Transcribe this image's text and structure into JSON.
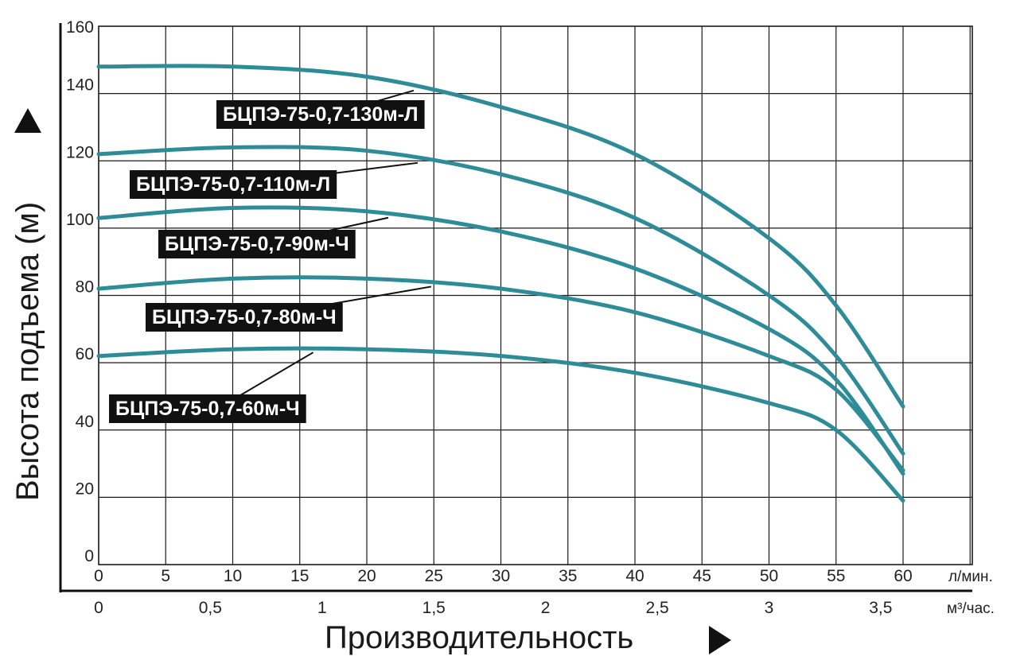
{
  "chart_data": {
    "type": "line",
    "ylabel": "Высота подъема (м)",
    "xlabel": "Производительность",
    "ylim": [
      0,
      160
    ],
    "yticks": [
      "0",
      "20",
      "40",
      "60",
      "80",
      "100",
      "120",
      "140",
      "160"
    ],
    "xlim": [
      0,
      65
    ],
    "x_primary_ticks": [
      "0",
      "5",
      "10",
      "15",
      "20",
      "25",
      "30",
      "35",
      "40",
      "45",
      "50",
      "55",
      "60"
    ],
    "x_primary_unit": "л/мин.",
    "x_secondary_ticks": [
      {
        "label": "0",
        "x": 0
      },
      {
        "label": "0,5",
        "x": 8.33
      },
      {
        "label": "1",
        "x": 16.67
      },
      {
        "label": "1,5",
        "x": 25
      },
      {
        "label": "2",
        "x": 33.33
      },
      {
        "label": "2,5",
        "x": 41.67
      },
      {
        "label": "3",
        "x": 50
      },
      {
        "label": "3,5",
        "x": 58.33
      }
    ],
    "x_secondary_unit": "м³/час.",
    "grid": true,
    "series": [
      {
        "name": "БЦПЭ-75-0,7-130м-Л",
        "x": [
          0,
          10,
          20,
          30,
          40,
          50,
          55,
          60
        ],
        "y": [
          148,
          148,
          145,
          136,
          122,
          97,
          77,
          47
        ]
      },
      {
        "name": "БЦПЭ-75-0,7-110м-Л",
        "x": [
          0,
          10,
          20,
          30,
          40,
          50,
          55,
          60
        ],
        "y": [
          122,
          124,
          123,
          116,
          103,
          80,
          62,
          33
        ]
      },
      {
        "name": "БЦПЭ-75-0,7-90м-Ч",
        "x": [
          0,
          10,
          20,
          30,
          40,
          50,
          55,
          60
        ],
        "y": [
          103,
          106,
          105,
          99,
          88,
          70,
          55,
          27
        ]
      },
      {
        "name": "БЦПЭ-75-0,7-80м-Ч",
        "x": [
          0,
          10,
          20,
          30,
          40,
          50,
          55,
          60
        ],
        "y": [
          82,
          85,
          85,
          82,
          75,
          62,
          52,
          28
        ]
      },
      {
        "name": "БЦПЭ-75-0,7-60м-Ч",
        "x": [
          0,
          10,
          20,
          30,
          40,
          50,
          55,
          60
        ],
        "y": [
          62,
          64,
          64,
          62,
          57,
          48,
          40,
          19
        ]
      }
    ]
  }
}
